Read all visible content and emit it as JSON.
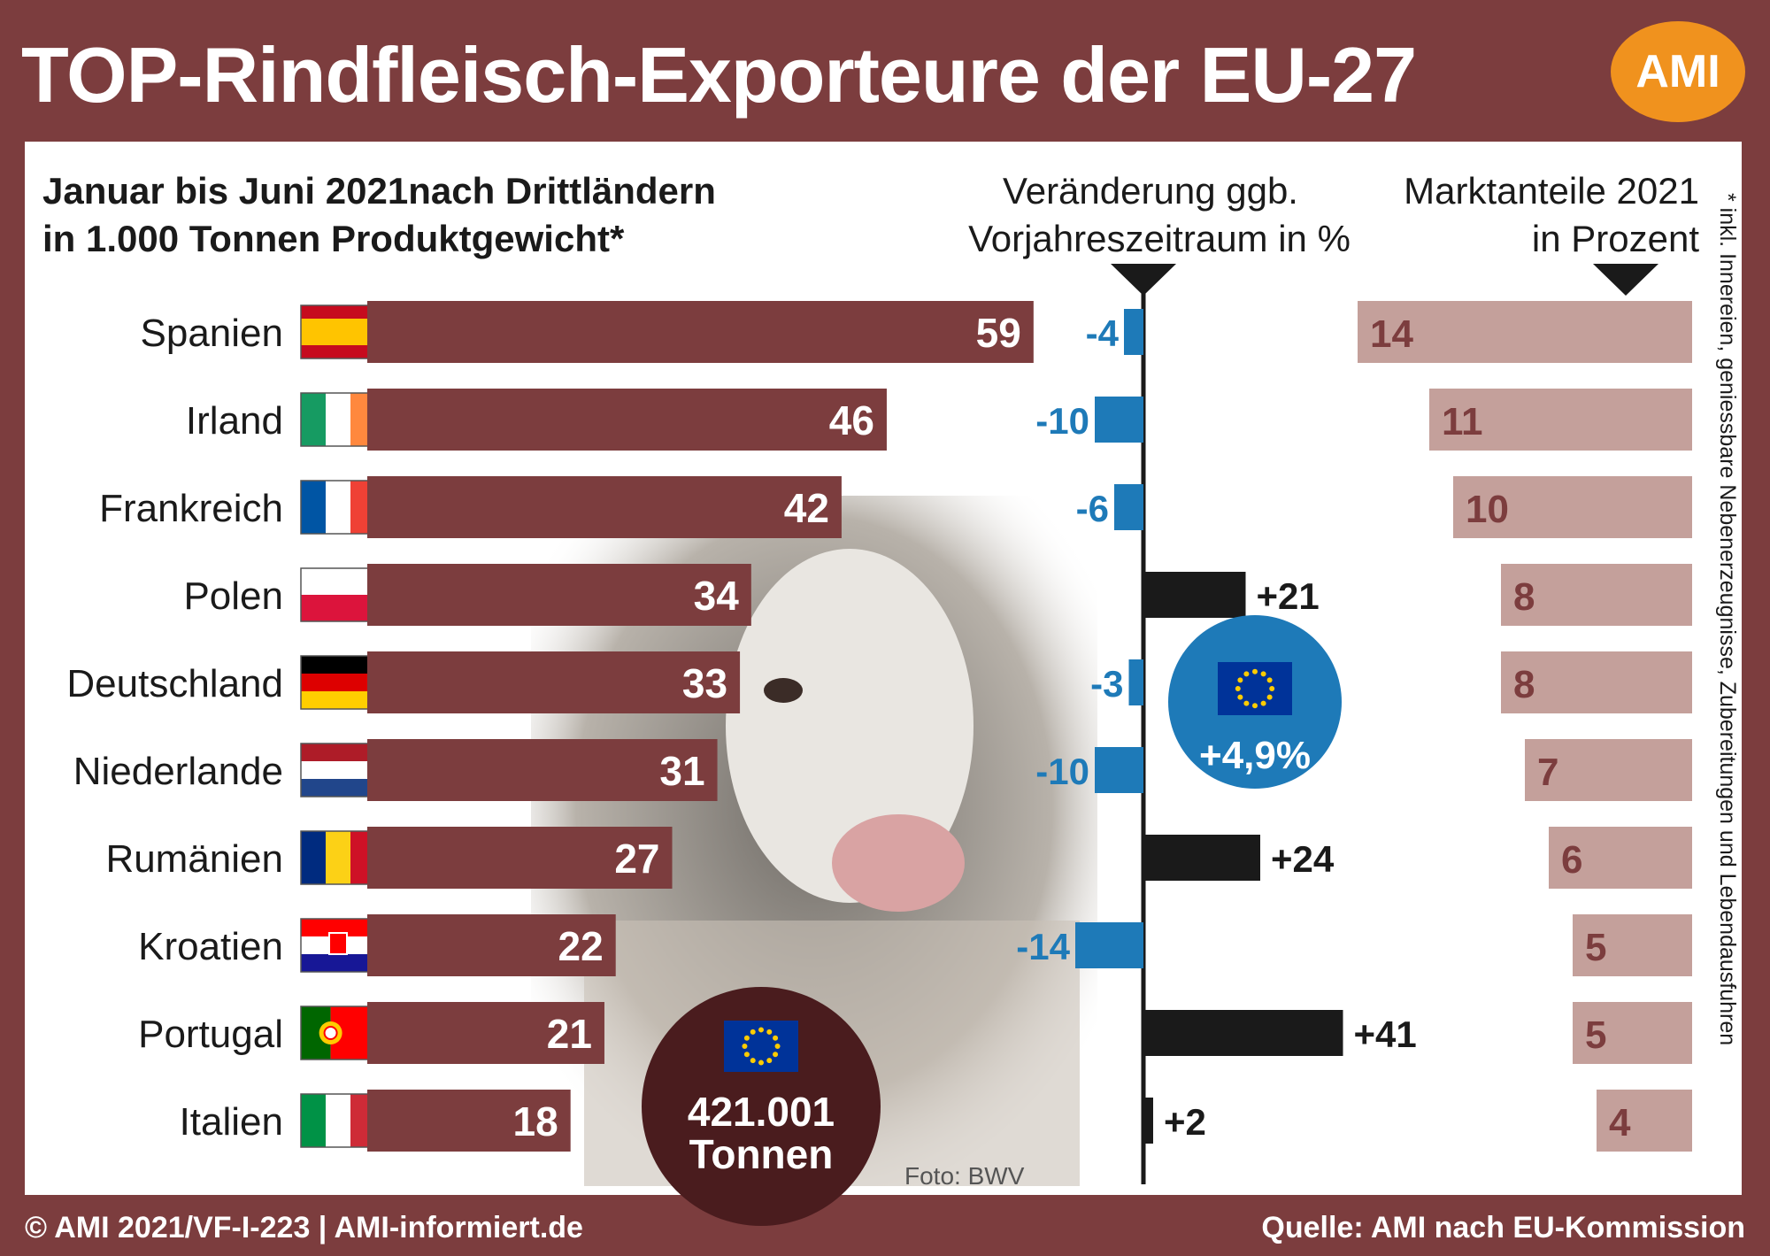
{
  "header": {
    "title": "TOP-Rindfleisch-Exporteure der EU-27",
    "logo_text": "AMI"
  },
  "chart_data": {
    "type": "bar",
    "subtitle_lines": [
      "Januar bis Juni 2021nach Drittländern",
      "in 1.000 Tonnen Produktgewicht*"
    ],
    "change_heading_lines": [
      "Veränderung ggb.",
      "Vorjahreszeitraum in %"
    ],
    "share_heading_lines": [
      "Marktanteile 2021",
      "in Prozent"
    ],
    "footnote": "* inkl. Innereien, geniessbare Nebenerzeugnisse, Zubereitungen und Lebendausfuhren",
    "categories": [
      "Spanien",
      "Irland",
      "Frankreich",
      "Polen",
      "Deutschland",
      "Niederlande",
      "Rumänien",
      "Kroatien",
      "Portugal",
      "Italien"
    ],
    "series": [
      {
        "values": [
          59,
          46,
          42,
          34,
          33,
          31,
          27,
          22,
          21,
          18
        ]
      },
      {
        "values": [
          -4,
          -10,
          -6,
          21,
          -3,
          -10,
          24,
          -14,
          41,
          2
        ]
      },
      {
        "values": [
          14,
          11,
          10,
          8,
          8,
          7,
          6,
          5,
          5,
          4
        ]
      }
    ],
    "change_labels": [
      "-4",
      "-10",
      "-6",
      "+21",
      "-3",
      "-10",
      "+24",
      "-14",
      "+41",
      "+2"
    ],
    "eu_change_label": "+4,9%",
    "total_lines": [
      "421.001",
      "Tonnen"
    ],
    "photo_credit": "Foto:  BWV",
    "colors": {
      "volume_bar": "#7c3d3e",
      "negative_change": "#1e7ab8",
      "positive_change": "#1a1a1a",
      "share_bar": "#c4a09b",
      "share_label": "#7c3d3e",
      "eu_circle": "#1e7ab8",
      "total_circle": "#4a1c1e",
      "eu_flag": "#003399",
      "eu_stars": "#ffcc00"
    },
    "flag_icons": [
      "flag-spain-icon",
      "flag-ireland-icon",
      "flag-france-icon",
      "flag-poland-icon",
      "flag-germany-icon",
      "flag-netherlands-icon",
      "flag-romania-icon",
      "flag-croatia-icon",
      "flag-portugal-icon",
      "flag-italy-icon"
    ]
  },
  "footer": {
    "left": "© AMI 2021/VF-I-223 | AMI-informiert.de",
    "right": "Quelle: AMI nach EU-Kommission"
  }
}
